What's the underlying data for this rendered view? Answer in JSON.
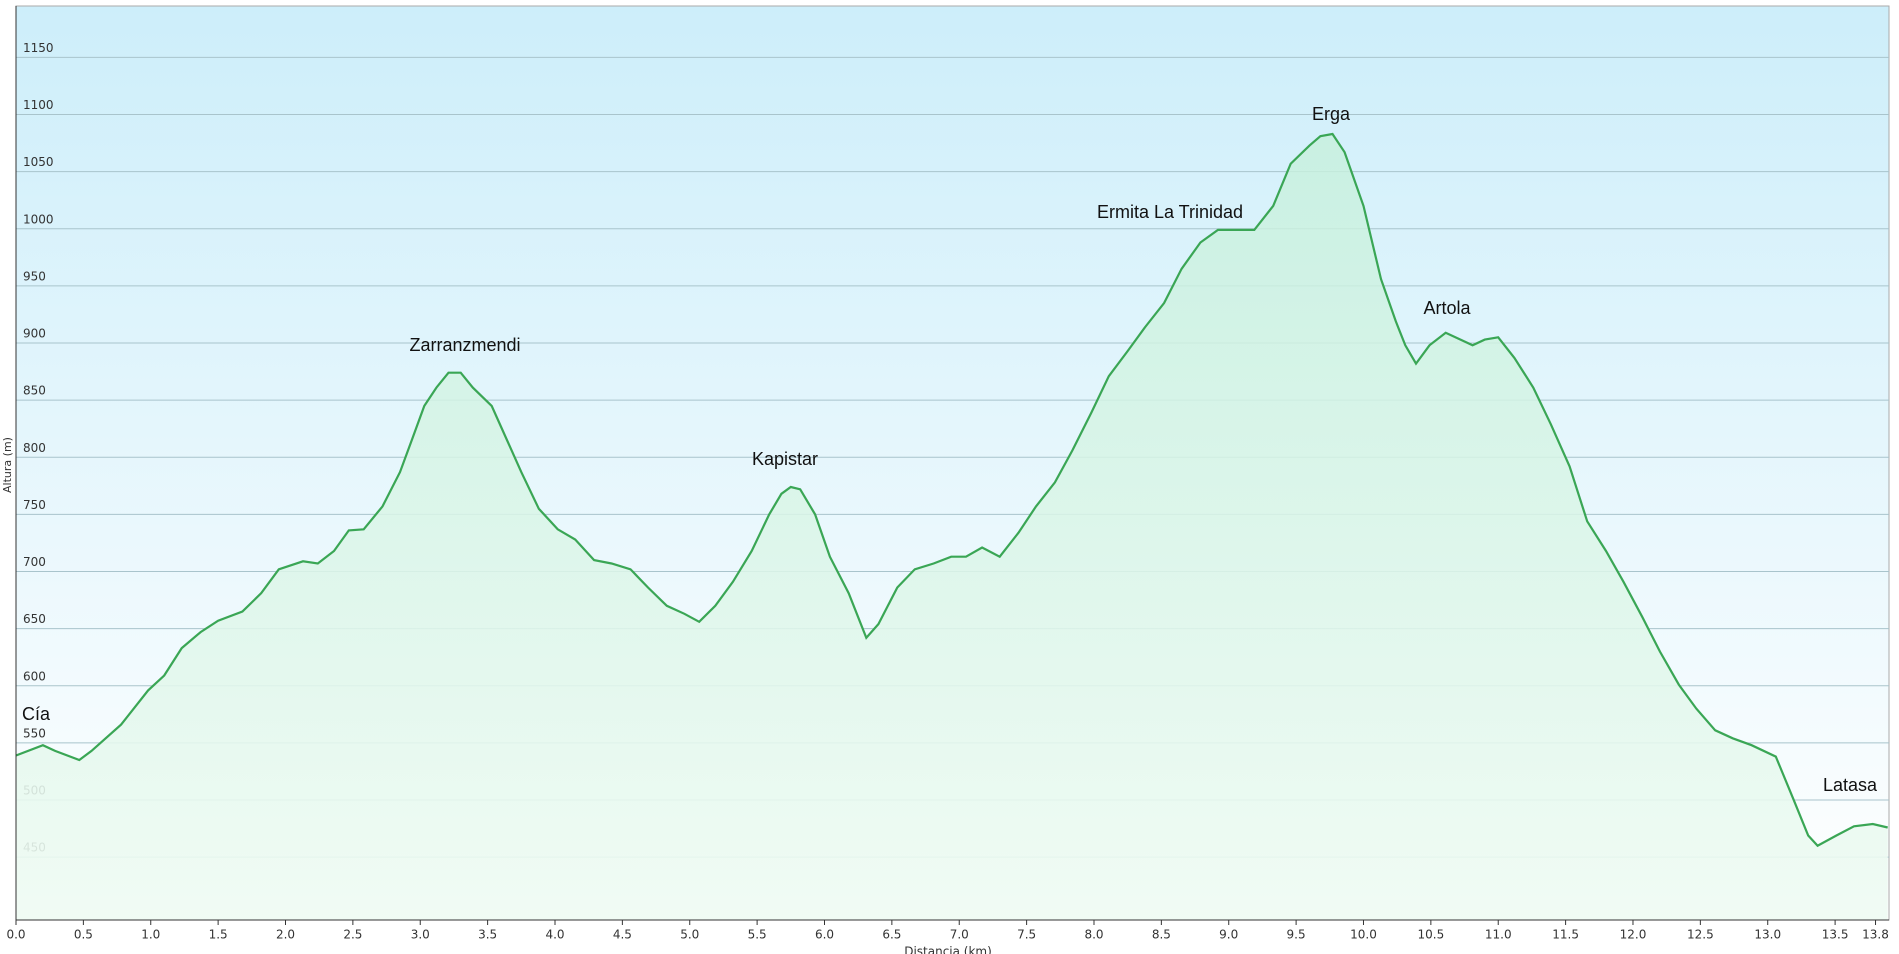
{
  "chart_data": {
    "type": "area",
    "x_label": "Distancia (km)",
    "y_label": "Altura (m)",
    "annotations": [
      "Cía",
      "Zarranzmendi",
      "Kapistar",
      "Ermita La Trinidad",
      "Erga",
      "Artola",
      "Latasa"
    ],
    "color": "#3aa655",
    "grid": true,
    "xlim": [
      0,
      13.9
    ],
    "ylim": [
      395,
      1195
    ],
    "xticks": [
      {
        "value": 0,
        "label": "0.0"
      },
      0.5,
      {
        "value": 1,
        "label": "1.0"
      },
      1.5,
      {
        "value": 2,
        "label": "2.0"
      },
      2.5,
      {
        "value": 3,
        "label": "3.0"
      },
      3.5,
      {
        "value": 4,
        "label": "4.0"
      },
      4.5,
      {
        "value": 5,
        "label": "5.0"
      },
      5.5,
      {
        "value": 6,
        "label": "6.0"
      },
      6.5,
      {
        "value": 7,
        "label": "7.0"
      },
      7.5,
      {
        "value": 8,
        "label": "8.0"
      },
      8.5,
      {
        "value": 9,
        "label": "9.0"
      },
      9.5,
      {
        "value": 10,
        "label": "10.0"
      },
      10.5,
      {
        "value": 11,
        "label": "11.0"
      },
      11.5,
      {
        "value": 12,
        "label": "12.0"
      },
      12.5,
      {
        "value": 13,
        "label": "13.0"
      },
      13.5,
      13.8
    ],
    "yticks": [
      450,
      500,
      550,
      600,
      650,
      700,
      750,
      800,
      850,
      900,
      950,
      1000,
      1050,
      1100,
      1150
    ],
    "x": [
      0,
      0.2,
      0.29,
      0.47,
      0.56,
      0.78,
      0.98,
      1.1,
      1.23,
      1.37,
      1.5,
      1.68,
      1.82,
      1.95,
      2.13,
      2.24,
      2.36,
      2.47,
      2.58,
      2.72,
      2.85,
      2.94,
      3.03,
      3.12,
      3.21,
      3.3,
      3.39,
      3.53,
      3.64,
      3.75,
      3.88,
      4.02,
      4.15,
      4.29,
      4.42,
      4.56,
      4.69,
      4.83,
      4.96,
      5.07,
      5.19,
      5.32,
      5.46,
      5.59,
      5.68,
      5.75,
      5.82,
      5.93,
      6.04,
      6.18,
      6.31,
      6.4,
      6.54,
      6.67,
      6.81,
      6.94,
      7.05,
      7.17,
      7.3,
      7.44,
      7.57,
      7.71,
      7.84,
      7.98,
      8.11,
      8.25,
      8.38,
      8.52,
      8.65,
      8.79,
      8.92,
      9.06,
      9.19,
      9.33,
      9.46,
      9.6,
      9.68,
      9.77,
      9.86,
      10.0,
      10.13,
      10.24,
      10.31,
      10.39,
      10.49,
      10.61,
      10.72,
      10.81,
      10.9,
      11.0,
      11.12,
      11.26,
      11.39,
      11.53,
      11.66,
      11.8,
      11.93,
      12.07,
      12.2,
      12.34,
      12.47,
      12.61,
      12.74,
      12.88,
      13.06,
      13.19,
      13.3,
      13.37,
      13.51,
      13.64,
      13.78,
      13.89
    ],
    "values": [
      539,
      548,
      543,
      535,
      543,
      566,
      596,
      609,
      633,
      647,
      657,
      665,
      681,
      702,
      709,
      707,
      718,
      736,
      737,
      757,
      787,
      816,
      845,
      861,
      874,
      874,
      861,
      845,
      816,
      787,
      755,
      737,
      728,
      710,
      707,
      702,
      686,
      670,
      663,
      656,
      670,
      691,
      718,
      750,
      768,
      774,
      772,
      750,
      713,
      681,
      642,
      654,
      686,
      702,
      707,
      713,
      713,
      721,
      713,
      734,
      757,
      778,
      806,
      839,
      871,
      893,
      914,
      935,
      965,
      988,
      999,
      999,
      999,
      1020,
      1057,
      1073,
      1081,
      1083,
      1067,
      1020,
      956,
      919,
      898,
      882,
      898,
      909,
      903,
      898,
      903,
      905,
      887,
      861,
      829,
      792,
      744,
      718,
      691,
      660,
      630,
      601,
      580,
      561,
      554,
      548,
      538,
      501,
      469,
      460,
      469,
      477,
      479,
      476
    ]
  }
}
